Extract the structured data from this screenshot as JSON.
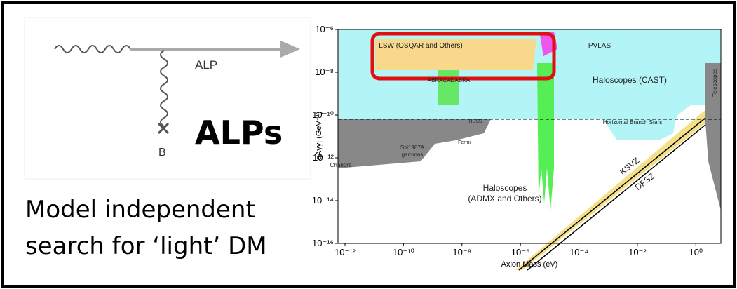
{
  "diagram": {
    "labels": [
      "ALP",
      "B"
    ],
    "heading": "ALPs"
  },
  "caption": [
    "Model independent",
    "search for ‘light’ DM"
  ],
  "chart_data": {
    "type": "exclusion",
    "xlabel": "Axion Mass (eV)",
    "ylabel": "|gAγγ| (GeV⁻¹)",
    "log_x": true,
    "log_y": true,
    "xlim": [
      1e-12,
      10
    ],
    "ylim": [
      1e-16,
      1e-06
    ],
    "xticks": [
      {
        "value": 1e-12,
        "label": "10⁻¹²"
      },
      {
        "value": 1e-10,
        "label": "10⁻¹⁰"
      },
      {
        "value": 1e-08,
        "label": "10⁻⁸"
      },
      {
        "value": 1e-06,
        "label": "10⁻⁶"
      },
      {
        "value": 0.0001,
        "label": "10⁻⁴"
      },
      {
        "value": 0.01,
        "label": "10⁻²"
      },
      {
        "value": 1,
        "label": "10⁰"
      }
    ],
    "yticks": [
      {
        "value": 1e-16,
        "label": "10⁻¹⁶"
      },
      {
        "value": 1e-14,
        "label": "10⁻¹⁴"
      },
      {
        "value": 1e-12,
        "label": "10⁻¹²"
      },
      {
        "value": 1e-10,
        "label": "10⁻¹⁰"
      },
      {
        "value": 1e-08,
        "label": "10⁻⁸"
      },
      {
        "value": 1e-06,
        "label": "10⁻⁶"
      }
    ],
    "annotations": [
      "LSW (OSQAR and Others)",
      "PVLAS",
      "ABRACADABRA",
      "Haloscopes (CAST)",
      "Telescopes",
      "Horizontal Branch Stars",
      "HESS",
      "Fermi",
      "SN1987A",
      "gammas",
      "Chandra",
      "Haloscopes",
      "(ADMX and Others)",
      "KSVZ",
      "DFSZ"
    ]
  }
}
